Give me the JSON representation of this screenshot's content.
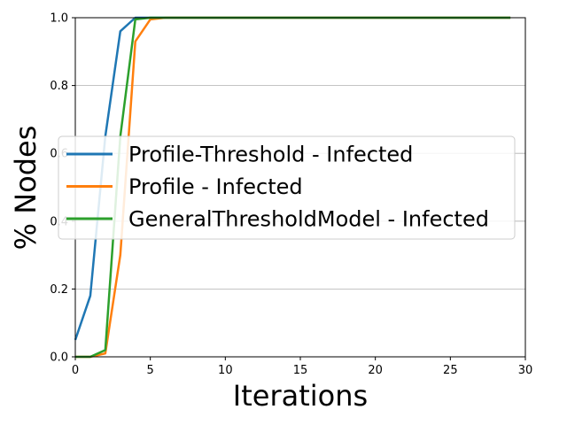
{
  "chart_data": {
    "type": "line",
    "xlabel": "Iterations",
    "ylabel": "% Nodes",
    "xlim": [
      0,
      30
    ],
    "ylim": [
      0,
      1.0
    ],
    "xticks": [
      "0",
      "5",
      "10",
      "15",
      "20",
      "25",
      "30"
    ],
    "yticks": [
      "0.0",
      "0.2",
      "0.4",
      "0.6",
      "0.8",
      "1.0"
    ],
    "grid": "horizontal",
    "legend_position": "center",
    "x": [
      0,
      1,
      2,
      3,
      4,
      5,
      6,
      7,
      8,
      9,
      10,
      11,
      12,
      13,
      14,
      15,
      16,
      17,
      18,
      19,
      20,
      21,
      22,
      23,
      24,
      25,
      26,
      27,
      28,
      29
    ],
    "series": [
      {
        "name": "Profile-Threshold - Infected",
        "color": "#1f77b4",
        "values": [
          0.05,
          0.18,
          0.65,
          0.96,
          1.0,
          1.0,
          1.0,
          1.0,
          1.0,
          1.0,
          1.0,
          1.0,
          1.0,
          1.0,
          1.0,
          1.0,
          1.0,
          1.0,
          1.0,
          1.0,
          1.0,
          1.0,
          1.0,
          1.0,
          1.0,
          1.0,
          1.0,
          1.0,
          1.0,
          1.0
        ]
      },
      {
        "name": "Profile - Infected",
        "color": "#ff7f0e",
        "values": [
          0.0,
          0.0,
          0.01,
          0.3,
          0.93,
          0.995,
          1.0,
          1.0,
          1.0,
          1.0,
          1.0,
          1.0,
          1.0,
          1.0,
          1.0,
          1.0,
          1.0,
          1.0,
          1.0,
          1.0,
          1.0,
          1.0,
          1.0,
          1.0,
          1.0,
          1.0,
          1.0,
          1.0,
          1.0,
          1.0
        ]
      },
      {
        "name": "GeneralThresholdModel - Infected",
        "color": "#2ca02c",
        "values": [
          0.0,
          0.0,
          0.02,
          0.65,
          0.995,
          1.0,
          1.0,
          1.0,
          1.0,
          1.0,
          1.0,
          1.0,
          1.0,
          1.0,
          1.0,
          1.0,
          1.0,
          1.0,
          1.0,
          1.0,
          1.0,
          1.0,
          1.0,
          1.0,
          1.0,
          1.0,
          1.0,
          1.0,
          1.0,
          1.0
        ]
      }
    ]
  }
}
